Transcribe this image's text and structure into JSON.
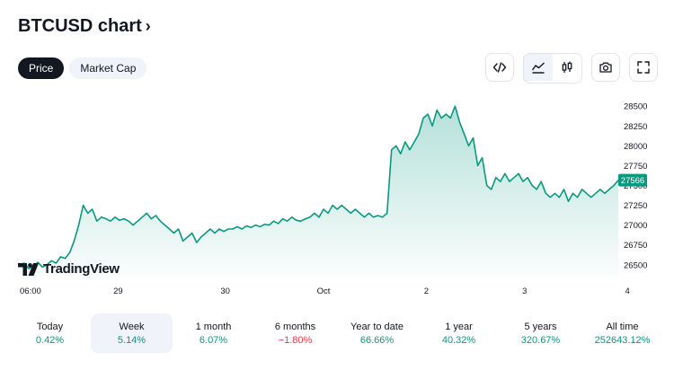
{
  "header": {
    "title": "BTCUSD chart"
  },
  "tabs": [
    {
      "label": "Price",
      "active": true
    },
    {
      "label": "Market Cap",
      "active": false
    }
  ],
  "toolbar": {
    "icons": [
      "embed-code-icon",
      "area-chart-icon",
      "candlestick-icon",
      "camera-icon",
      "fullscreen-icon"
    ],
    "active": "area-chart-icon"
  },
  "logo": {
    "text": "TradingView"
  },
  "colors": {
    "line": "#089981",
    "accent_pos": "#089981",
    "accent_neg": "#f23645",
    "price_badge": "#089981"
  },
  "chart_data": {
    "type": "area",
    "current_price": "27566",
    "ylim": [
      26350,
      28650
    ],
    "y_ticks": [
      "28500",
      "28250",
      "28000",
      "27750",
      "27500",
      "27250",
      "27000",
      "26750",
      "26500"
    ],
    "x_ticks": [
      "06:00",
      "29",
      "30",
      "Oct",
      "2",
      "3",
      "4"
    ],
    "points": [
      [
        0,
        26500
      ],
      [
        1,
        26520
      ],
      [
        2,
        26450
      ],
      [
        3,
        26480
      ],
      [
        4,
        26530
      ],
      [
        5,
        26470
      ],
      [
        6,
        26500
      ],
      [
        7,
        26550
      ],
      [
        8,
        26520
      ],
      [
        9,
        26600
      ],
      [
        10,
        26580
      ],
      [
        11,
        26650
      ],
      [
        12,
        26800
      ],
      [
        13,
        27000
      ],
      [
        14,
        27250
      ],
      [
        15,
        27150
      ],
      [
        16,
        27200
      ],
      [
        17,
        27050
      ],
      [
        18,
        27100
      ],
      [
        19,
        27080
      ],
      [
        20,
        27050
      ],
      [
        21,
        27100
      ],
      [
        22,
        27060
      ],
      [
        23,
        27080
      ],
      [
        24,
        27050
      ],
      [
        25,
        27000
      ],
      [
        26,
        27050
      ],
      [
        27,
        27100
      ],
      [
        28,
        27150
      ],
      [
        29,
        27080
      ],
      [
        30,
        27120
      ],
      [
        31,
        27050
      ],
      [
        32,
        27000
      ],
      [
        33,
        26950
      ],
      [
        34,
        26900
      ],
      [
        35,
        26950
      ],
      [
        36,
        26800
      ],
      [
        37,
        26850
      ],
      [
        38,
        26900
      ],
      [
        39,
        26780
      ],
      [
        40,
        26850
      ],
      [
        41,
        26900
      ],
      [
        42,
        26950
      ],
      [
        43,
        26900
      ],
      [
        44,
        26950
      ],
      [
        45,
        26920
      ],
      [
        46,
        26950
      ],
      [
        47,
        26950
      ],
      [
        48,
        26980
      ],
      [
        49,
        26950
      ],
      [
        50,
        26990
      ],
      [
        51,
        26970
      ],
      [
        52,
        27000
      ],
      [
        53,
        26980
      ],
      [
        54,
        27010
      ],
      [
        55,
        27000
      ],
      [
        56,
        27050
      ],
      [
        57,
        27020
      ],
      [
        58,
        27080
      ],
      [
        59,
        27050
      ],
      [
        60,
        27100
      ],
      [
        61,
        27060
      ],
      [
        62,
        27050
      ],
      [
        63,
        27080
      ],
      [
        64,
        27100
      ],
      [
        65,
        27150
      ],
      [
        66,
        27100
      ],
      [
        67,
        27200
      ],
      [
        68,
        27150
      ],
      [
        69,
        27250
      ],
      [
        70,
        27200
      ],
      [
        71,
        27250
      ],
      [
        72,
        27200
      ],
      [
        73,
        27150
      ],
      [
        74,
        27200
      ],
      [
        75,
        27150
      ],
      [
        76,
        27100
      ],
      [
        77,
        27150
      ],
      [
        78,
        27100
      ],
      [
        79,
        27120
      ],
      [
        80,
        27100
      ],
      [
        81,
        27150
      ],
      [
        82,
        27950
      ],
      [
        83,
        28000
      ],
      [
        84,
        27900
      ],
      [
        85,
        28050
      ],
      [
        86,
        27950
      ],
      [
        87,
        28050
      ],
      [
        88,
        28150
      ],
      [
        89,
        28350
      ],
      [
        90,
        28400
      ],
      [
        91,
        28250
      ],
      [
        92,
        28450
      ],
      [
        93,
        28350
      ],
      [
        94,
        28400
      ],
      [
        95,
        28350
      ],
      [
        96,
        28500
      ],
      [
        97,
        28300
      ],
      [
        98,
        28150
      ],
      [
        99,
        28000
      ],
      [
        100,
        28100
      ],
      [
        101,
        27750
      ],
      [
        102,
        27850
      ],
      [
        103,
        27500
      ],
      [
        104,
        27450
      ],
      [
        105,
        27600
      ],
      [
        106,
        27550
      ],
      [
        107,
        27650
      ],
      [
        108,
        27550
      ],
      [
        109,
        27600
      ],
      [
        110,
        27650
      ],
      [
        111,
        27550
      ],
      [
        112,
        27600
      ],
      [
        113,
        27500
      ],
      [
        114,
        27450
      ],
      [
        115,
        27550
      ],
      [
        116,
        27400
      ],
      [
        117,
        27350
      ],
      [
        118,
        27400
      ],
      [
        119,
        27350
      ],
      [
        120,
        27450
      ],
      [
        121,
        27300
      ],
      [
        122,
        27400
      ],
      [
        123,
        27350
      ],
      [
        124,
        27450
      ],
      [
        125,
        27400
      ],
      [
        126,
        27350
      ],
      [
        127,
        27400
      ],
      [
        128,
        27450
      ],
      [
        129,
        27400
      ],
      [
        130,
        27450
      ],
      [
        131,
        27500
      ],
      [
        132,
        27566
      ]
    ]
  },
  "periods": [
    {
      "label": "Today",
      "value": "0.42%",
      "dir": "pos",
      "active": false
    },
    {
      "label": "Week",
      "value": "5.14%",
      "dir": "pos",
      "active": true
    },
    {
      "label": "1 month",
      "value": "6.07%",
      "dir": "pos",
      "active": false
    },
    {
      "label": "6 months",
      "value": "−1.80%",
      "dir": "neg",
      "active": false
    },
    {
      "label": "Year to date",
      "value": "66.66%",
      "dir": "pos",
      "active": false
    },
    {
      "label": "1 year",
      "value": "40.32%",
      "dir": "pos",
      "active": false
    },
    {
      "label": "5 years",
      "value": "320.67%",
      "dir": "pos",
      "active": false
    },
    {
      "label": "All time",
      "value": "252643.12%",
      "dir": "pos",
      "active": false
    }
  ]
}
